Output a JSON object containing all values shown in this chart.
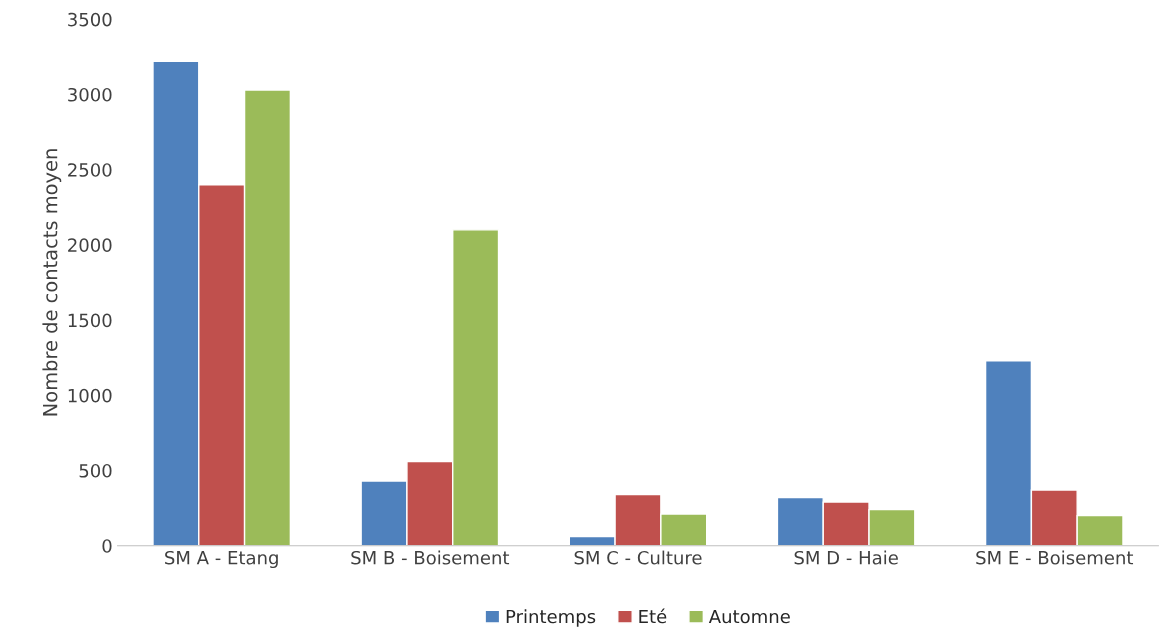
{
  "chart_data": {
    "type": "bar",
    "ylabel": "Nombre de contacts moyen",
    "categories": [
      "SM A - Etang",
      "SM B - Boisement",
      "SM C - Culture",
      "SM D - Haie",
      "SM E - Boisement"
    ],
    "series": [
      {
        "name": "Printemps",
        "color": "#4f81bd",
        "values": [
          3220,
          430,
          60,
          320,
          1230
        ]
      },
      {
        "name": "Eté",
        "color": "#c0504d",
        "values": [
          2400,
          560,
          340,
          290,
          370
        ]
      },
      {
        "name": "Automne",
        "color": "#9bbb59",
        "values": [
          3030,
          2100,
          210,
          240,
          200
        ]
      }
    ],
    "ylim": [
      0,
      3500
    ],
    "yticks": [
      0,
      500,
      1000,
      1500,
      2000,
      2500,
      3000,
      3500
    ],
    "grid": false,
    "legend": "bottom"
  }
}
